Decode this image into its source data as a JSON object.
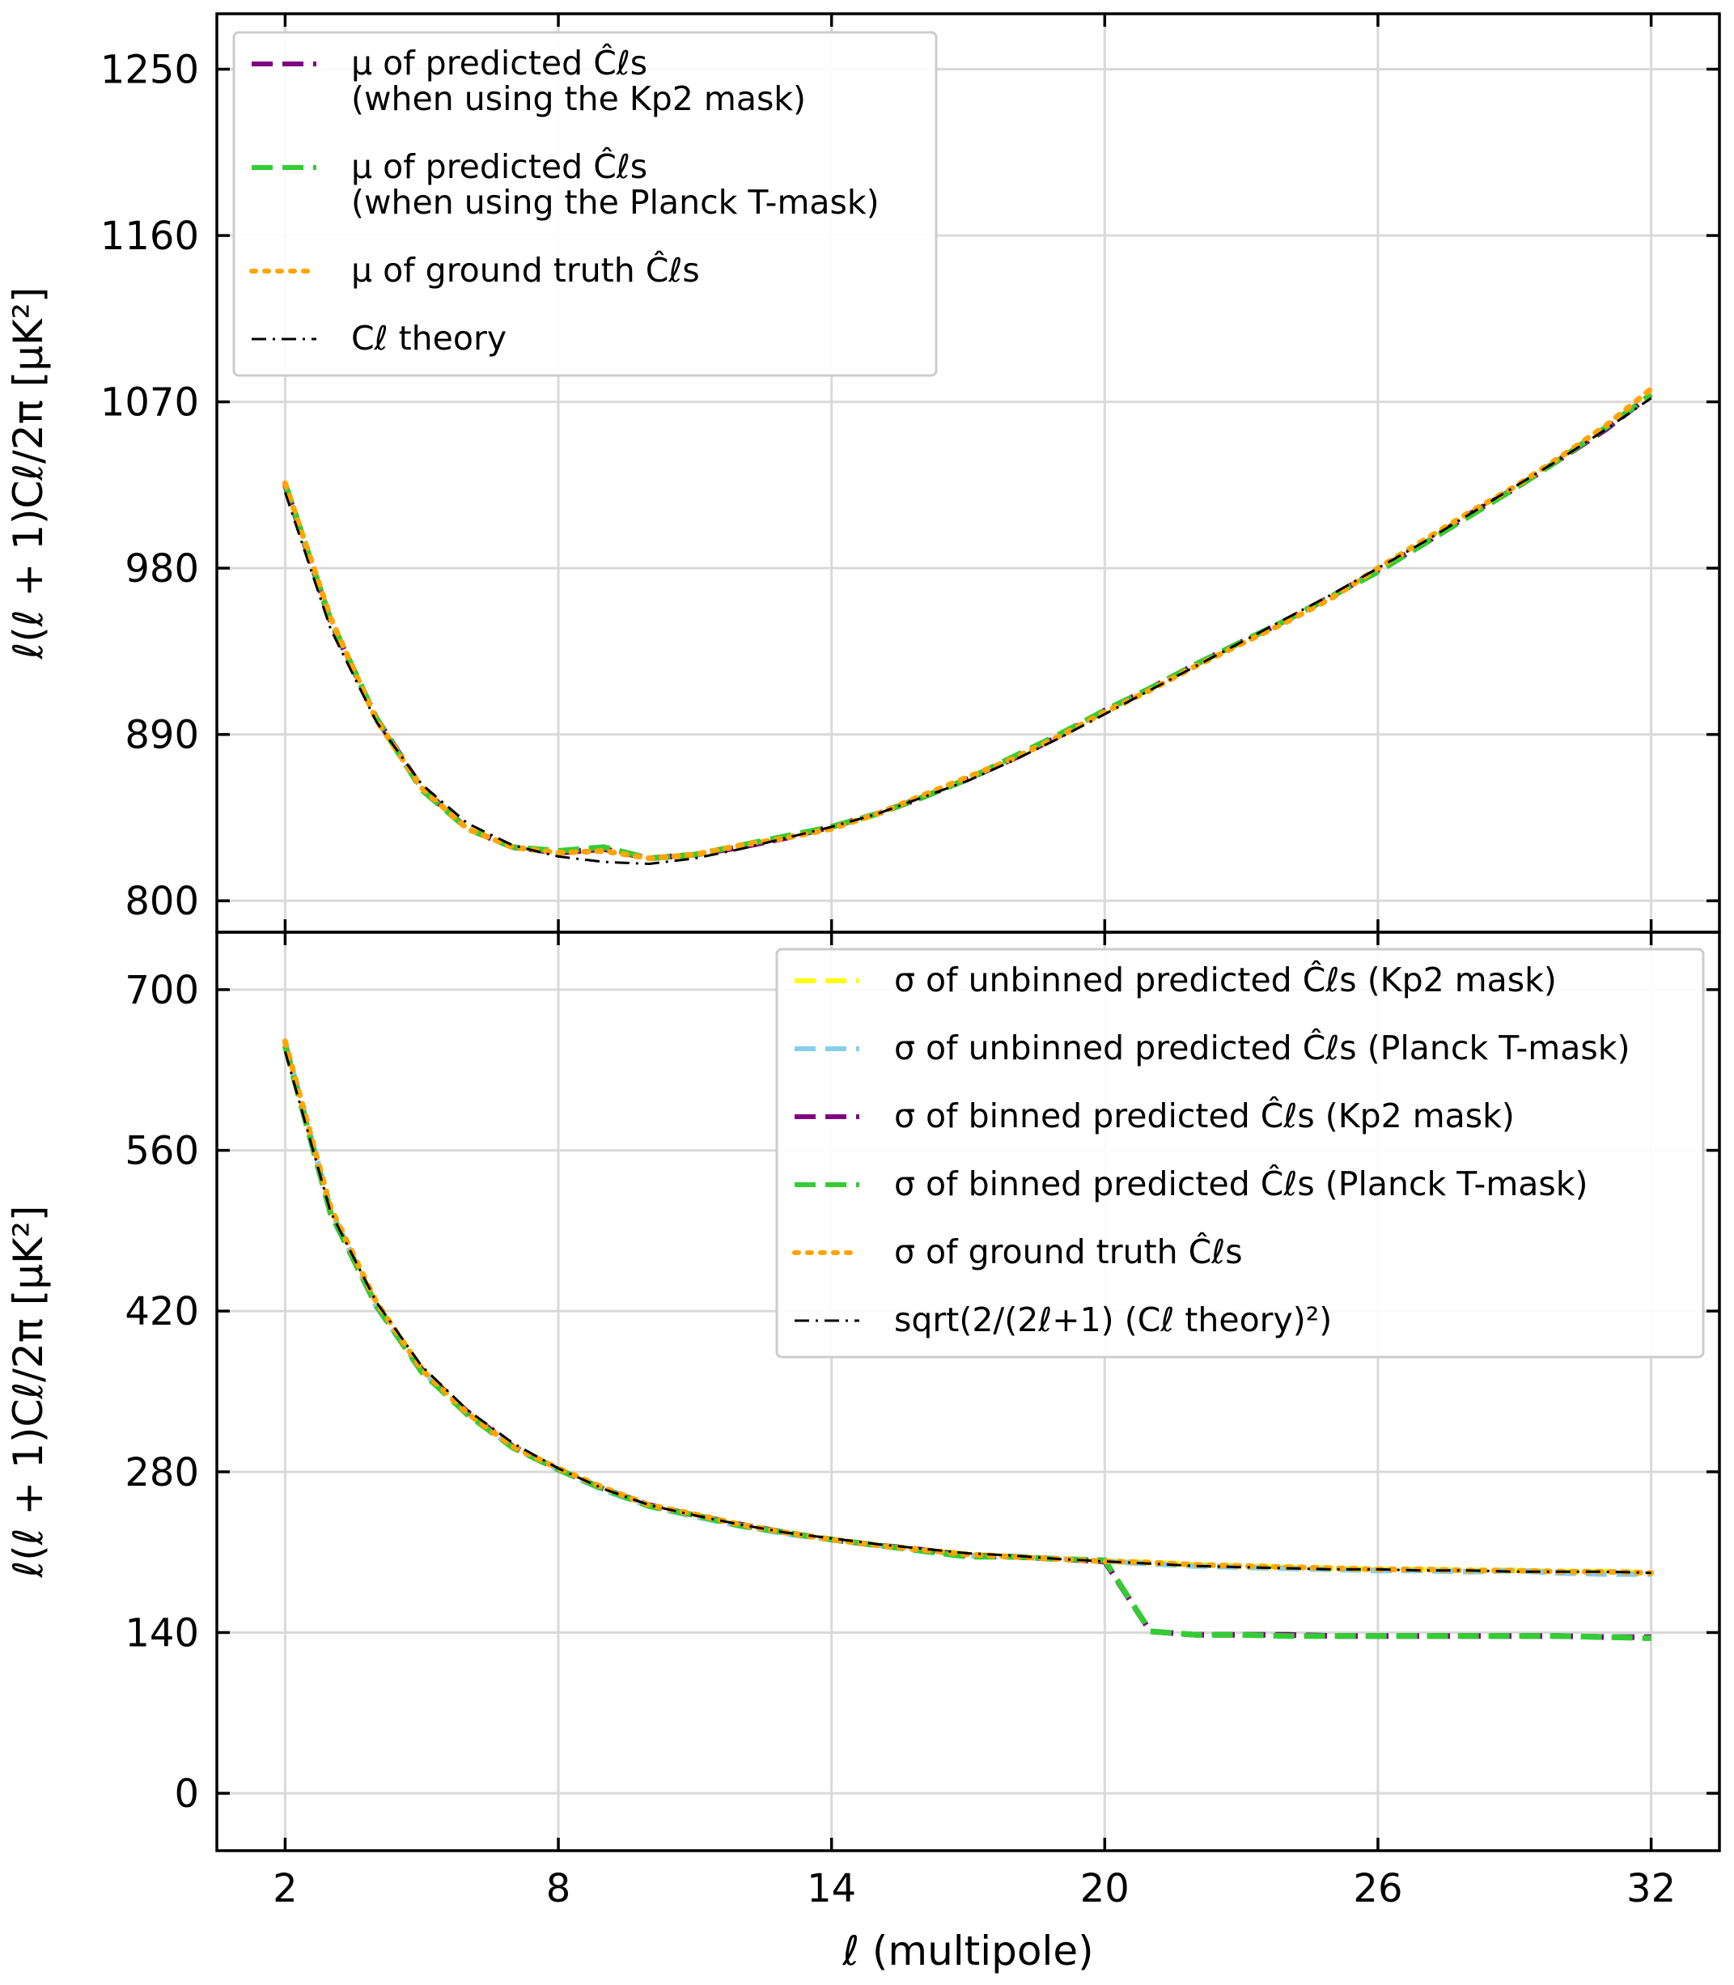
{
  "chart_data": [
    {
      "type": "line",
      "title": "",
      "xlabel": "ℓ (multipole)",
      "ylabel": "ℓ(ℓ + 1)Cℓ/2π  [μK²]",
      "xlim": [
        0.5,
        33.5
      ],
      "ylim": [
        783,
        1280
      ],
      "xticks": [
        2,
        8,
        14,
        20,
        26,
        32
      ],
      "yticks": [
        800,
        890,
        980,
        1070,
        1160,
        1250
      ],
      "grid": true,
      "legend_position": "top-left",
      "series": [
        {
          "name": "μ of predicted Ĉℓs (when using the Kp2 mask)",
          "name_lines": [
            "μ of predicted Ĉℓs",
            "(when using the Kp2 mask)"
          ],
          "color": "#800080",
          "dash": "dashed",
          "x": [
            2,
            3,
            4,
            5,
            6,
            7,
            8,
            9,
            10,
            11,
            12,
            13,
            14,
            15,
            16,
            17,
            18,
            19,
            20,
            21,
            22,
            23,
            24,
            25,
            26,
            27,
            28,
            29,
            30,
            31,
            32
          ],
          "y": [
            1025,
            951,
            899,
            861,
            839,
            829,
            826,
            828,
            823,
            825,
            829,
            834,
            840,
            847,
            856,
            866,
            877,
            889,
            903,
            915,
            928,
            940,
            952,
            965,
            979,
            993,
            1009,
            1023,
            1039,
            1055,
            1074
          ]
        },
        {
          "name": "μ of predicted Ĉℓs (when using the Planck T-mask)",
          "name_lines": [
            "μ of predicted Ĉℓs",
            "(when using the Planck T-mask)"
          ],
          "color": "#33cc33",
          "dash": "dashed",
          "x": [
            2,
            3,
            4,
            5,
            6,
            7,
            8,
            9,
            10,
            11,
            12,
            13,
            14,
            15,
            16,
            17,
            18,
            19,
            20,
            21,
            22,
            23,
            24,
            25,
            26,
            27,
            28,
            29,
            30,
            31,
            32
          ],
          "y": [
            1026,
            952,
            899,
            860,
            839,
            829,
            827,
            829,
            823,
            825,
            830,
            835,
            840,
            847,
            856,
            866,
            878,
            890,
            903,
            915,
            928,
            940,
            952,
            965,
            978,
            993,
            1008,
            1023,
            1039,
            1056,
            1074
          ]
        },
        {
          "name": "μ of ground truth Ĉℓs",
          "name_lines": [
            "μ of ground truth Ĉℓs"
          ],
          "color": "#ffa500",
          "dash": "dotted",
          "x": [
            2,
            3,
            4,
            5,
            6,
            7,
            8,
            9,
            10,
            11,
            12,
            13,
            14,
            15,
            16,
            17,
            18,
            19,
            20,
            21,
            22,
            23,
            24,
            25,
            26,
            27,
            28,
            29,
            30,
            31,
            32
          ],
          "y": [
            1026,
            953,
            898,
            861,
            839,
            829,
            826,
            827,
            823,
            825,
            830,
            834,
            839,
            847,
            857,
            867,
            877,
            889,
            902,
            914,
            927,
            939,
            951,
            964,
            980,
            995,
            1010,
            1024,
            1040,
            1057,
            1077
          ]
        },
        {
          "name": "Cℓ theory",
          "name_lines": [
            "Cℓ theory"
          ],
          "color": "#000000",
          "dash": "dashdot",
          "x": [
            2,
            3,
            4,
            5,
            6,
            7,
            8,
            9,
            10,
            11,
            12,
            13,
            14,
            15,
            16,
            17,
            18,
            19,
            20,
            21,
            22,
            23,
            24,
            25,
            26,
            27,
            28,
            29,
            30,
            31,
            32
          ],
          "y": [
            1021,
            947,
            897,
            863,
            842,
            830,
            824,
            821,
            820,
            823,
            828,
            834,
            840,
            847,
            856,
            865,
            876,
            888,
            901,
            914,
            927,
            940,
            953,
            966,
            980,
            994,
            1009,
            1024,
            1039,
            1055,
            1072
          ]
        }
      ]
    },
    {
      "type": "line",
      "title": "",
      "xlabel": "ℓ (multipole)",
      "ylabel": "ℓ(ℓ + 1)Cℓ/2π  [μK²]",
      "xlim": [
        0.5,
        33.5
      ],
      "ylim": [
        -50,
        750
      ],
      "xticks": [
        2,
        8,
        14,
        20,
        26,
        32
      ],
      "yticks": [
        0,
        140,
        280,
        420,
        560,
        700
      ],
      "grid": true,
      "legend_position": "top-right",
      "series": [
        {
          "name": "σ of unbinned predicted Ĉℓs (Kp2 mask)",
          "name_lines": [
            "σ of unbinned predicted Ĉℓs (Kp2 mask)"
          ],
          "color": "#ffff00",
          "dash": "dashed",
          "x": [
            2,
            3,
            4,
            5,
            6,
            7,
            8,
            9,
            10,
            11,
            12,
            13,
            14,
            15,
            16,
            17,
            18,
            19,
            20,
            21,
            22,
            23,
            24,
            25,
            26,
            27,
            28,
            29,
            30,
            31,
            32
          ],
          "y": [
            652,
            506,
            426,
            370,
            332,
            302,
            282,
            265,
            250,
            242,
            234,
            227,
            221,
            216,
            212,
            208,
            206,
            204,
            202,
            201,
            199,
            198,
            197,
            196,
            195,
            195,
            194,
            194,
            193,
            193,
            192
          ]
        },
        {
          "name": "σ of unbinned predicted Ĉℓs (Planck T-mask)",
          "name_lines": [
            "σ of unbinned predicted Ĉℓs (Planck T-mask)"
          ],
          "color": "#87ceeb",
          "dash": "dashed",
          "x": [
            2,
            3,
            4,
            5,
            6,
            7,
            8,
            9,
            10,
            11,
            12,
            13,
            14,
            15,
            16,
            17,
            18,
            19,
            20,
            21,
            22,
            23,
            24,
            25,
            26,
            27,
            28,
            29,
            30,
            31,
            32
          ],
          "y": [
            654,
            508,
            424,
            368,
            331,
            301,
            282,
            264,
            250,
            241,
            233,
            226,
            221,
            216,
            212,
            207,
            206,
            204,
            202,
            200,
            198,
            197,
            196,
            195,
            194,
            194,
            193,
            194,
            192,
            191,
            191
          ]
        },
        {
          "name": "σ of binned predicted Ĉℓs (Kp2 mask)",
          "name_lines": [
            "σ of binned predicted Ĉℓs (Kp2 mask)"
          ],
          "color": "#800080",
          "dash": "dashed",
          "x": [
            2,
            3,
            4,
            5,
            6,
            7,
            8,
            9,
            10,
            11,
            12,
            13,
            14,
            15,
            16,
            17,
            18,
            19,
            20,
            21,
            22,
            23,
            24,
            25,
            26,
            27,
            28,
            29,
            30,
            31,
            32
          ],
          "y": [
            651,
            505,
            425,
            369,
            332,
            302,
            282,
            265,
            251,
            242,
            234,
            227,
            221,
            216,
            212,
            207,
            206,
            204,
            202,
            141,
            138,
            138,
            138,
            137,
            137,
            137,
            137,
            137,
            137,
            136,
            136
          ]
        },
        {
          "name": "σ of binned predicted Ĉℓs (Planck T-mask)",
          "name_lines": [
            "σ of binned predicted Ĉℓs (Planck T-mask)"
          ],
          "color": "#33cc33",
          "dash": "dashed",
          "x": [
            2,
            3,
            4,
            5,
            6,
            7,
            8,
            9,
            10,
            11,
            12,
            13,
            14,
            15,
            16,
            17,
            18,
            19,
            20,
            21,
            22,
            23,
            24,
            25,
            26,
            27,
            28,
            29,
            30,
            31,
            32
          ],
          "y": [
            651,
            505,
            425,
            367,
            330,
            301,
            282,
            265,
            250,
            242,
            233,
            227,
            221,
            216,
            211,
            206,
            206,
            204,
            203,
            141,
            138,
            138,
            137,
            137,
            137,
            137,
            137,
            137,
            137,
            136,
            135
          ]
        },
        {
          "name": "σ of ground truth Ĉℓs",
          "name_lines": [
            "σ of ground truth Ĉℓs"
          ],
          "color": "#ffa500",
          "dash": "dotted",
          "x": [
            2,
            3,
            4,
            5,
            6,
            7,
            8,
            9,
            10,
            11,
            12,
            13,
            14,
            15,
            16,
            17,
            18,
            19,
            20,
            21,
            22,
            23,
            24,
            25,
            26,
            27,
            28,
            29,
            30,
            31,
            32
          ],
          "y": [
            655,
            510,
            428,
            369,
            331,
            302,
            283,
            266,
            251,
            243,
            234,
            227,
            221,
            216,
            212,
            208,
            206,
            204,
            202,
            201,
            199,
            198,
            197,
            196,
            195,
            195,
            194,
            194,
            193,
            193,
            192
          ]
        },
        {
          "name": "sqrt(2/(2ℓ+1) (Cℓ theory)²)",
          "name_lines": [
            "sqrt(2/(2ℓ+1) (Cℓ theory)²)"
          ],
          "color": "#000000",
          "dash": "dashdot",
          "x": [
            2,
            3,
            4,
            5,
            6,
            7,
            8,
            9,
            10,
            11,
            12,
            13,
            14,
            15,
            16,
            17,
            18,
            19,
            20,
            21,
            22,
            23,
            24,
            25,
            26,
            27,
            28,
            29,
            30,
            31,
            32
          ],
          "y": [
            646,
            506,
            428,
            372,
            334,
            305,
            283,
            265,
            251,
            242,
            234,
            227,
            222,
            217,
            213,
            209,
            207,
            204,
            202,
            200,
            198,
            197,
            196,
            195,
            195,
            194,
            194,
            193,
            193,
            193,
            192
          ]
        }
      ]
    }
  ]
}
